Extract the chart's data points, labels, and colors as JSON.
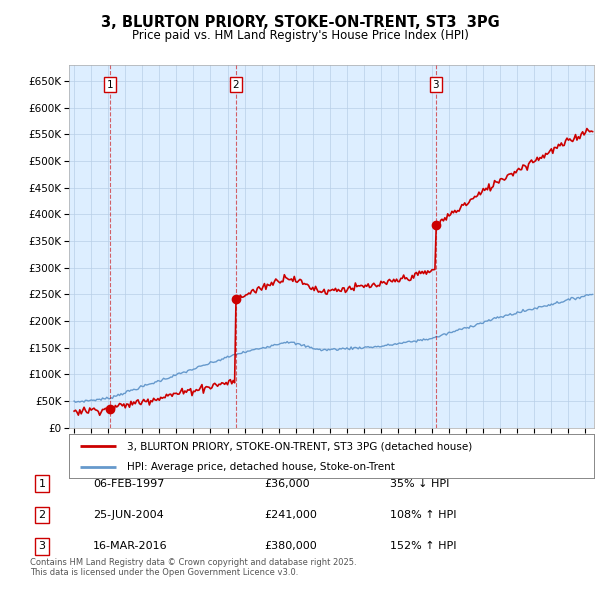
{
  "title": "3, BLURTON PRIORY, STOKE-ON-TRENT, ST3  3PG",
  "subtitle": "Price paid vs. HM Land Registry's House Price Index (HPI)",
  "background_color": "#ffffff",
  "plot_bg_color": "#ddeeff",
  "grid_color": "#b8cfe8",
  "sale_year_floats": [
    1997.095,
    2004.479,
    2016.208
  ],
  "sale_prices": [
    36000,
    241000,
    380000
  ],
  "sale_labels": [
    "1",
    "2",
    "3"
  ],
  "sale_info": [
    {
      "num": "1",
      "date": "06-FEB-1997",
      "price": "£36,000",
      "hpi": "35% ↓ HPI"
    },
    {
      "num": "2",
      "date": "25-JUN-2004",
      "price": "£241,000",
      "hpi": "108% ↑ HPI"
    },
    {
      "num": "3",
      "date": "16-MAR-2016",
      "price": "£380,000",
      "hpi": "152% ↑ HPI"
    }
  ],
  "legend_line1": "3, BLURTON PRIORY, STOKE-ON-TRENT, ST3 3PG (detached house)",
  "legend_line2": "HPI: Average price, detached house, Stoke-on-Trent",
  "footnote": "Contains HM Land Registry data © Crown copyright and database right 2025.\nThis data is licensed under the Open Government Licence v3.0.",
  "ylim": [
    0,
    680000
  ],
  "yticks": [
    0,
    50000,
    100000,
    150000,
    200000,
    250000,
    300000,
    350000,
    400000,
    450000,
    500000,
    550000,
    600000,
    650000
  ],
  "xlim": [
    1994.7,
    2025.5
  ],
  "red_line_color": "#cc0000",
  "blue_line_color": "#6699cc",
  "sale_marker_color": "#cc0000",
  "vline_color": "#cc0000"
}
